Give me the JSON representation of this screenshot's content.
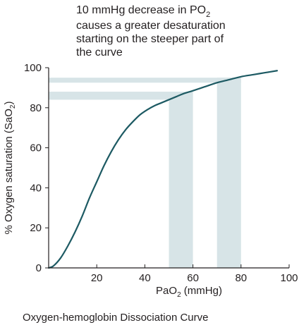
{
  "annotation": {
    "lines": [
      "10 mmHg decrease in PO",
      "causes a greater desaturation",
      "starting on the steeper part of",
      "the curve"
    ],
    "line1_sub": "2"
  },
  "caption": "Oxygen-hemoglobin Dissociation Curve",
  "colors": {
    "curve": "#1d5a63",
    "band": "#d7e4e7",
    "axis": "#231f20",
    "text": "#231f20"
  },
  "chart_data": {
    "type": "line",
    "title": "",
    "xlabel": {
      "prefix": "PaO",
      "sub": "2",
      "suffix": " (mmHg)"
    },
    "ylabel": {
      "prefix": "% Oxygen saturation (SaO",
      "sub": "2",
      "suffix": ")"
    },
    "xlim": [
      0,
      100
    ],
    "ylim": [
      0,
      100
    ],
    "x_ticks": [
      20,
      40,
      60,
      80,
      100
    ],
    "y_ticks": [
      0,
      20,
      40,
      60,
      80,
      100
    ],
    "grid": false,
    "series": [
      {
        "x": [
          0,
          2,
          5,
          8,
          11,
          14,
          17,
          20,
          23,
          26,
          29,
          32,
          35,
          38,
          41,
          44,
          47,
          50,
          53,
          56,
          60,
          65,
          70,
          75,
          80,
          85,
          90,
          95
        ],
        "y": [
          0,
          1,
          5,
          11,
          18,
          26,
          35,
          43,
          51,
          58,
          64,
          69,
          73,
          76.5,
          79,
          81,
          82.5,
          84,
          85.5,
          87,
          88.5,
          90.5,
          92.5,
          94,
          95.5,
          96.5,
          97.5,
          98.5
        ]
      }
    ],
    "bands": [
      {
        "axis": "x",
        "from": 50,
        "to": 60,
        "ymax": 88
      },
      {
        "axis": "x",
        "from": 70,
        "to": 80,
        "ymax": 95
      },
      {
        "axis": "y",
        "from": 84,
        "to": 88,
        "xmax": 60
      },
      {
        "axis": "y",
        "from": 92.5,
        "to": 95,
        "xmax": 80
      }
    ]
  }
}
